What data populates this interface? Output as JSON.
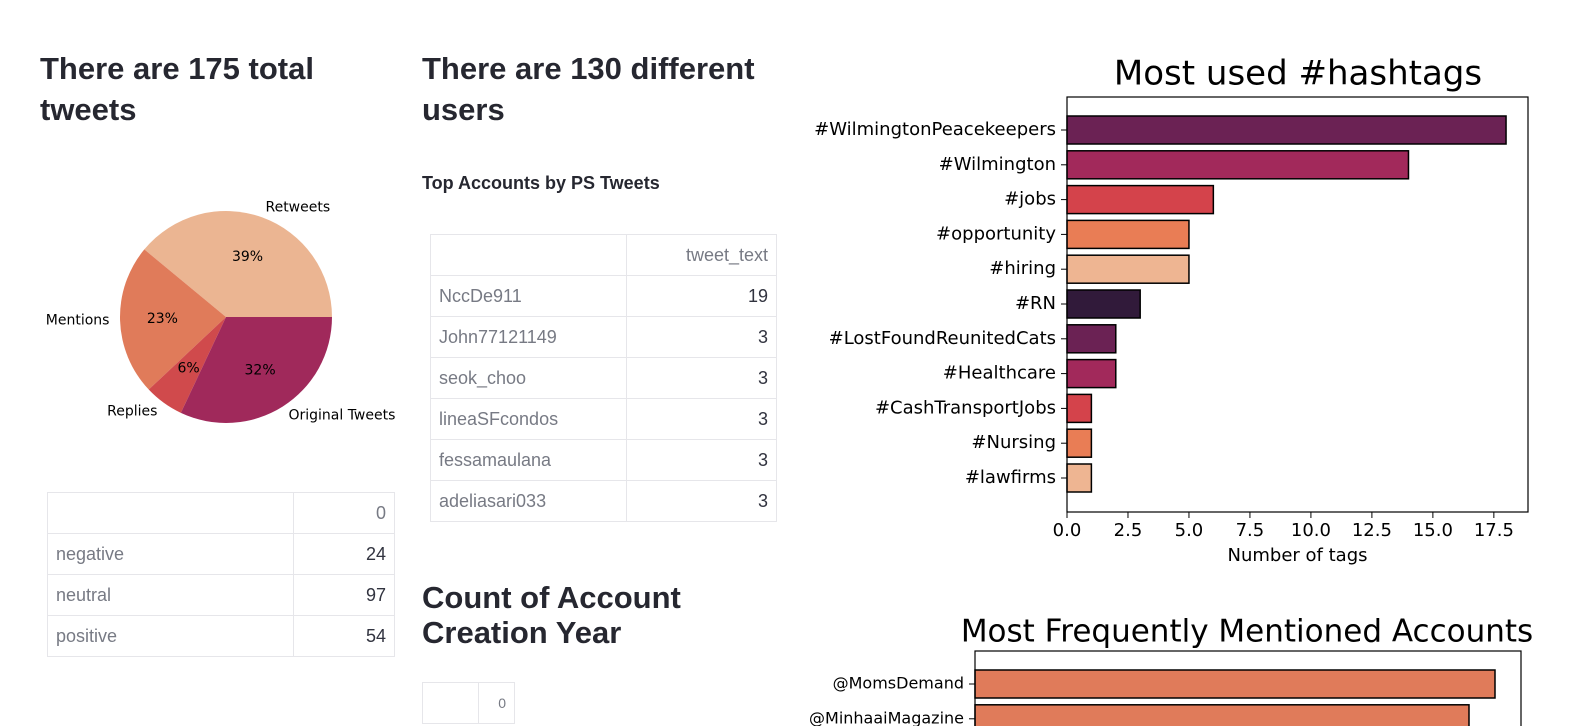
{
  "headings": {
    "total_tweets": "There are 175 total tweets",
    "users": "There are 130 different users",
    "top_accounts": "Top Accounts by PS Tweets",
    "creation_year": "Count of Account Creation Year"
  },
  "sentiment_table": {
    "columns": [
      "0"
    ],
    "rows": [
      [
        "negative",
        24
      ],
      [
        "neutral",
        97
      ],
      [
        "positive",
        54
      ]
    ]
  },
  "top_accounts_table": {
    "columns": [
      "tweet_text"
    ],
    "rows": [
      [
        "NccDe911",
        19
      ],
      [
        "John77121149",
        3
      ],
      [
        "seok_choo",
        3
      ],
      [
        "lineaSFcondos",
        3
      ],
      [
        "fessamaulana",
        3
      ],
      [
        "adeliasari033",
        3
      ]
    ]
  },
  "creation_year_table": {
    "columns": [
      "0"
    ]
  },
  "chart_data": [
    {
      "type": "pie",
      "categories": [
        "Retweets",
        "Mentions",
        "Replies",
        "Original Tweets"
      ],
      "values": [
        39,
        23,
        6,
        32
      ],
      "value_labels": [
        "39%",
        "23%",
        "6%",
        "32%"
      ],
      "colors": [
        "#ebb592",
        "#e07b5a",
        "#d04a4c",
        "#a0295b"
      ]
    },
    {
      "type": "barh",
      "title": "Most used #hashtags",
      "categories": [
        "#WilmingtonPeacekeepers",
        "#Wilmington",
        "#jobs",
        "#opportunity",
        "#hiring",
        "#RN",
        "#LostFoundReunitedCats",
        "#Healthcare",
        "#CashTransportJobs",
        "#Nursing",
        "#lawfirms"
      ],
      "values": [
        18,
        14,
        6,
        5,
        5,
        3,
        2,
        2,
        1,
        1,
        1
      ],
      "colors": [
        "#6b2254",
        "#a2295b",
        "#d4434b",
        "#e97d55",
        "#eeb592",
        "#311a3a",
        "#6b2254",
        "#a2295b",
        "#d4434b",
        "#e97d55",
        "#eeb592"
      ],
      "xlabel": "Number of tags",
      "xlim": [
        0,
        18.9
      ],
      "xticks": [
        {
          "value": 0,
          "label": "0.0"
        },
        {
          "value": 2.5,
          "label": "2.5"
        },
        {
          "value": 5,
          "label": "5.0"
        },
        {
          "value": 7.5,
          "label": "7.5"
        },
        {
          "value": 10,
          "label": "10.0"
        },
        {
          "value": 12.5,
          "label": "12.5"
        },
        {
          "value": 15,
          "label": "15.0"
        },
        {
          "value": 17.5,
          "label": "17.5"
        }
      ]
    },
    {
      "type": "barh",
      "title": "Most Frequently Mentioned Accounts",
      "categories": [
        "@MomsDemand",
        "@MinhaaiMagazine"
      ],
      "values": [
        20,
        19
      ],
      "colors": [
        "#e07b5a",
        "#e07b5a"
      ],
      "xlim": [
        0,
        21
      ]
    }
  ]
}
